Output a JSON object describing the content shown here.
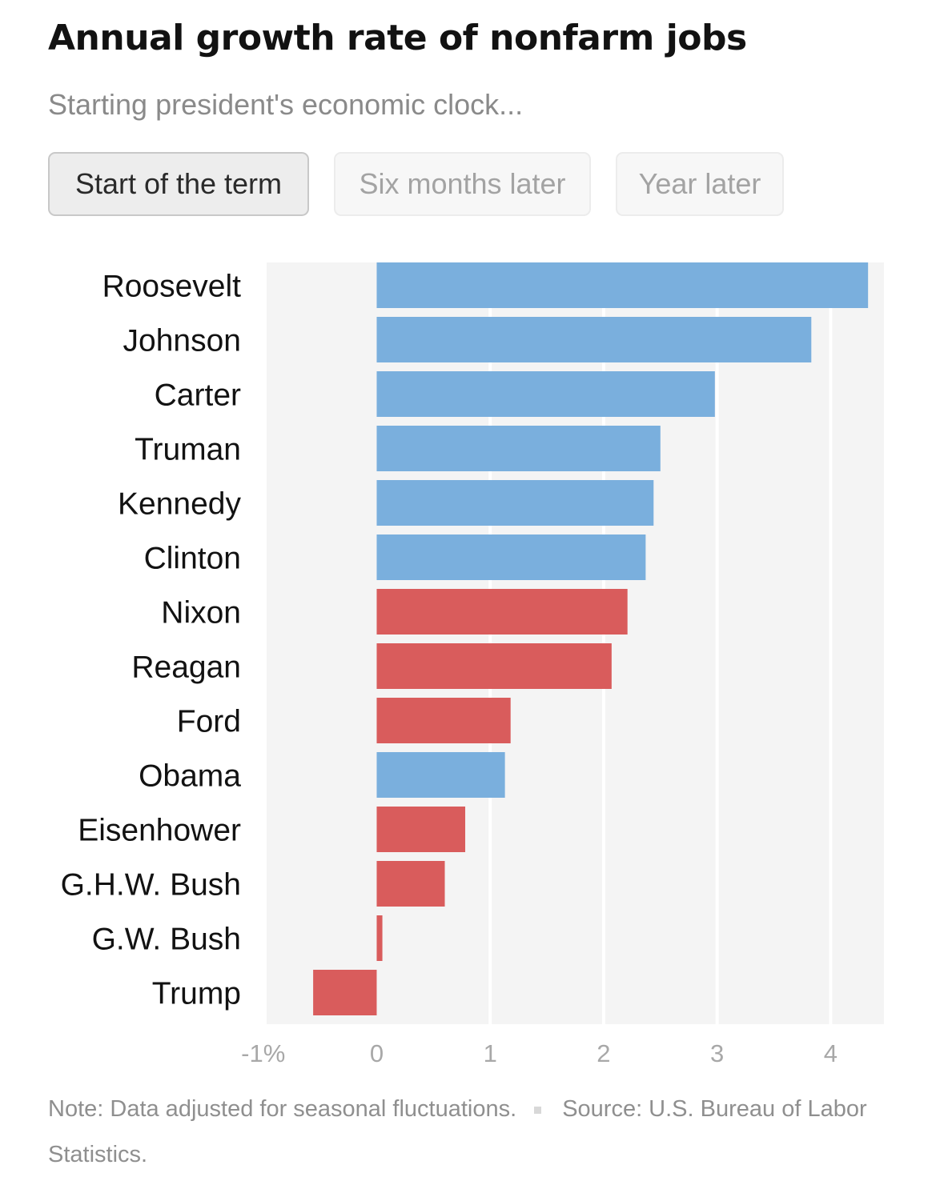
{
  "header": {
    "title": "Annual growth rate of nonfarm jobs",
    "subtitle": "Starting president's economic clock..."
  },
  "tabs": [
    {
      "label": "Start of the term",
      "active": true
    },
    {
      "label": "Six months later",
      "active": false
    },
    {
      "label": "Year later",
      "active": false
    }
  ],
  "footer": {
    "note": "Note: Data adjusted for seasonal fluctuations.",
    "source": "Source: U.S. Bureau of Labor Statistics."
  },
  "colors": {
    "democrat": "#7aafdd",
    "republican": "#d95c5c",
    "plot_background": "#f4f4f4",
    "gridline": "#ffffff"
  },
  "chart_data": {
    "type": "bar",
    "orientation": "horizontal",
    "title": "Annual growth rate of nonfarm jobs",
    "subtitle": "Starting president's economic clock...",
    "categories": [
      "Roosevelt",
      "Johnson",
      "Carter",
      "Truman",
      "Kennedy",
      "Clinton",
      "Nixon",
      "Reagan",
      "Ford",
      "Obama",
      "Eisenhower",
      "G.H.W. Bush",
      "G.W. Bush",
      "Trump"
    ],
    "values": [
      4.33,
      3.83,
      2.98,
      2.5,
      2.44,
      2.37,
      2.21,
      2.07,
      1.18,
      1.13,
      0.78,
      0.6,
      0.05,
      -0.56
    ],
    "party": [
      "democrat",
      "democrat",
      "democrat",
      "democrat",
      "democrat",
      "democrat",
      "republican",
      "republican",
      "republican",
      "democrat",
      "republican",
      "republican",
      "republican",
      "republican"
    ],
    "xlim": [
      -0.97,
      4.47
    ],
    "xticks": [
      -1,
      0,
      1,
      2,
      3,
      4
    ],
    "xtick_labels": [
      "-1%",
      "0",
      "1",
      "2",
      "3",
      "4"
    ],
    "grid": true
  }
}
